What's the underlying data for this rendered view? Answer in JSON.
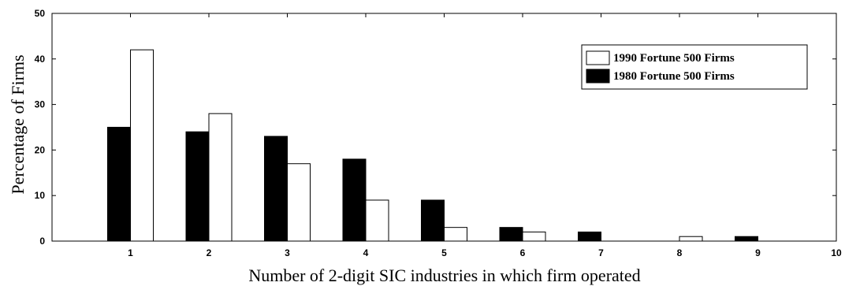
{
  "chart_data": {
    "type": "bar",
    "title": "",
    "xlabel": "Number of 2-digit SIC industries in which firm operated",
    "ylabel": "Percentage of Firms",
    "xlim": [
      0,
      10
    ],
    "ylim": [
      0,
      50
    ],
    "xticks": [
      1,
      2,
      3,
      4,
      5,
      6,
      7,
      8,
      9,
      10
    ],
    "yticks": [
      0,
      10,
      20,
      30,
      40,
      50
    ],
    "grid": false,
    "legend_position": "top-right",
    "categories": [
      1,
      2,
      3,
      4,
      5,
      6,
      7,
      8,
      9
    ],
    "series": [
      {
        "name": "1980 Fortune 500 Firms",
        "color": "#000000",
        "values": [
          25,
          24,
          23,
          18,
          9,
          3,
          2,
          0,
          1
        ]
      },
      {
        "name": "1990 Fortune 500 Firms",
        "color": "#ffffff",
        "values": [
          42,
          28,
          17,
          9,
          3,
          2,
          0,
          1,
          0
        ]
      }
    ],
    "legend_order": [
      "1990 Fortune 500 Firms",
      "1980 Fortune 500 Firms"
    ]
  }
}
